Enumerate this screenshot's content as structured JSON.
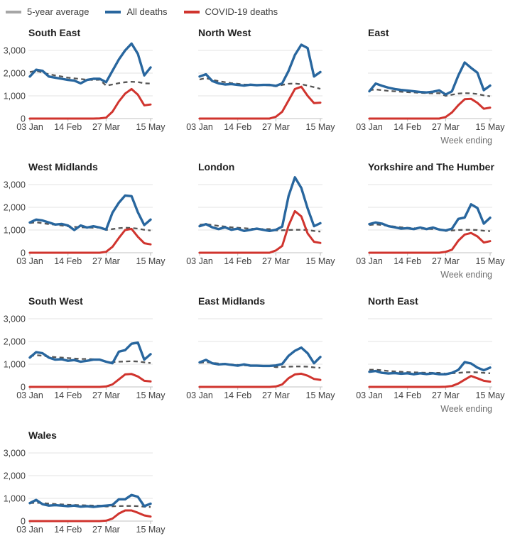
{
  "legend": {
    "items": [
      {
        "label": "5-year average",
        "key": "avg"
      },
      {
        "label": "All deaths",
        "key": "all"
      },
      {
        "label": "COVID-19 deaths",
        "key": "covid"
      }
    ]
  },
  "colors": {
    "legend_swatch": {
      "avg": "#a6a6a6",
      "all": "#28669e",
      "covid": "#d0342e"
    },
    "line": {
      "avg": "#555555",
      "all": "#28669e",
      "covid": "#d0342e"
    },
    "grid": "#e3e3e3",
    "axis": "#c0c0c0",
    "tick": "#bdbdbd"
  },
  "axis": {
    "x_ticks": [
      {
        "label": "03 Jan",
        "index": 0
      },
      {
        "label": "14 Feb",
        "index": 6
      },
      {
        "label": "27 Mar",
        "index": 12
      },
      {
        "label": "15 May",
        "index": 19
      }
    ],
    "y_ticks": [
      {
        "label": "0",
        "value": 0
      },
      {
        "label": "1,000",
        "value": 1000
      },
      {
        "label": "2,000",
        "value": 2000
      },
      {
        "label": "3,000",
        "value": 3000
      }
    ],
    "x_axis_note": "Week ending",
    "n_points": 20,
    "ylim": [
      0,
      3500
    ]
  },
  "chart_data": [
    {
      "type": "line",
      "region": "South East",
      "show_y_axis": true,
      "show_week_ending": false,
      "series": {
        "avg": [
          2050,
          2100,
          2030,
          1950,
          1900,
          1850,
          1800,
          1770,
          1740,
          1710,
          1700,
          1710,
          1450,
          1500,
          1560,
          1600,
          1620,
          1610,
          1550,
          1540
        ],
        "all": [
          1850,
          2150,
          2100,
          1850,
          1800,
          1750,
          1700,
          1670,
          1550,
          1700,
          1750,
          1750,
          1600,
          2100,
          2600,
          3000,
          3300,
          2850,
          1900,
          2250
        ],
        "covid": [
          0,
          0,
          0,
          0,
          0,
          0,
          0,
          0,
          0,
          0,
          0,
          10,
          40,
          300,
          750,
          1100,
          1300,
          1050,
          580,
          620
        ]
      }
    },
    {
      "type": "line",
      "region": "North West",
      "show_y_axis": false,
      "show_week_ending": false,
      "series": {
        "avg": [
          1720,
          1780,
          1700,
          1650,
          1600,
          1560,
          1530,
          1500,
          1490,
          1480,
          1470,
          1460,
          1420,
          1480,
          1530,
          1540,
          1510,
          1450,
          1380,
          1310
        ],
        "all": [
          1850,
          1950,
          1650,
          1550,
          1500,
          1520,
          1480,
          1450,
          1490,
          1470,
          1480,
          1480,
          1440,
          1550,
          2100,
          2800,
          3250,
          3100,
          1850,
          2050
        ],
        "covid": [
          0,
          0,
          0,
          0,
          0,
          0,
          0,
          0,
          0,
          0,
          0,
          0,
          80,
          300,
          800,
          1300,
          1400,
          1000,
          680,
          700
        ]
      }
    },
    {
      "type": "line",
      "region": "East",
      "show_y_axis": false,
      "show_week_ending": true,
      "series": {
        "avg": [
          1250,
          1280,
          1250,
          1220,
          1200,
          1180,
          1160,
          1150,
          1130,
          1120,
          1110,
          1120,
          1000,
          1050,
          1100,
          1120,
          1110,
          1080,
          1020,
          980
        ],
        "all": [
          1200,
          1540,
          1440,
          1360,
          1300,
          1260,
          1230,
          1200,
          1170,
          1150,
          1180,
          1240,
          1060,
          1200,
          1900,
          2470,
          2230,
          2020,
          1250,
          1450
        ],
        "covid": [
          0,
          0,
          0,
          0,
          0,
          0,
          0,
          0,
          0,
          0,
          0,
          0,
          70,
          270,
          590,
          850,
          870,
          690,
          430,
          480
        ]
      }
    },
    {
      "type": "line",
      "region": "West Midlands",
      "show_y_axis": true,
      "show_week_ending": false,
      "series": {
        "avg": [
          1310,
          1340,
          1300,
          1260,
          1230,
          1200,
          1170,
          1140,
          1120,
          1110,
          1100,
          1110,
          1000,
          1040,
          1080,
          1100,
          1090,
          1060,
          1010,
          980
        ],
        "all": [
          1330,
          1460,
          1420,
          1330,
          1240,
          1270,
          1200,
          1000,
          1200,
          1110,
          1165,
          1110,
          1020,
          1760,
          2200,
          2520,
          2490,
          1780,
          1220,
          1460
        ],
        "covid": [
          0,
          0,
          0,
          0,
          0,
          0,
          0,
          0,
          0,
          0,
          0,
          0,
          40,
          260,
          650,
          1000,
          1050,
          700,
          420,
          370
        ]
      }
    },
    {
      "type": "line",
      "region": "London",
      "show_y_axis": false,
      "show_week_ending": false,
      "series": {
        "avg": [
          1230,
          1260,
          1220,
          1180,
          1150,
          1120,
          1100,
          1080,
          1060,
          1050,
          1040,
          1040,
          980,
          990,
          1000,
          1010,
          1010,
          1000,
          960,
          930
        ],
        "all": [
          1170,
          1260,
          1120,
          1040,
          1120,
          1010,
          1060,
          960,
          1010,
          1060,
          1010,
          960,
          1010,
          1150,
          2500,
          3320,
          2850,
          1950,
          1170,
          1300
        ],
        "covid": [
          0,
          0,
          0,
          0,
          0,
          0,
          0,
          0,
          0,
          0,
          0,
          0,
          100,
          300,
          1200,
          1830,
          1600,
          850,
          480,
          430
        ]
      }
    },
    {
      "type": "line",
      "region": "Yorkshire and The Humber",
      "show_y_axis": false,
      "show_week_ending": true,
      "series": {
        "avg": [
          1220,
          1250,
          1220,
          1180,
          1150,
          1120,
          1100,
          1080,
          1060,
          1050,
          1040,
          1040,
          960,
          980,
          1000,
          1010,
          1010,
          1000,
          970,
          950
        ],
        "all": [
          1260,
          1330,
          1280,
          1170,
          1120,
          1060,
          1080,
          1040,
          1110,
          1040,
          1110,
          1020,
          980,
          1060,
          1490,
          1550,
          2130,
          1970,
          1280,
          1540
        ],
        "covid": [
          0,
          0,
          0,
          0,
          0,
          0,
          0,
          0,
          0,
          0,
          0,
          0,
          40,
          130,
          530,
          800,
          870,
          720,
          450,
          510
        ]
      }
    },
    {
      "type": "line",
      "region": "South West",
      "show_y_axis": true,
      "show_week_ending": false,
      "series": {
        "avg": [
          1350,
          1400,
          1370,
          1340,
          1310,
          1290,
          1270,
          1250,
          1230,
          1230,
          1220,
          1210,
          1100,
          1090,
          1110,
          1120,
          1130,
          1120,
          1080,
          1050
        ],
        "all": [
          1290,
          1530,
          1480,
          1290,
          1200,
          1220,
          1150,
          1180,
          1110,
          1150,
          1200,
          1200,
          1110,
          1040,
          1550,
          1620,
          1900,
          1950,
          1200,
          1440
        ],
        "covid": [
          0,
          0,
          0,
          0,
          0,
          0,
          0,
          0,
          0,
          0,
          0,
          0,
          20,
          110,
          330,
          550,
          570,
          460,
          270,
          240
        ]
      }
    },
    {
      "type": "line",
      "region": "East Midlands",
      "show_y_axis": false,
      "show_week_ending": false,
      "series": {
        "avg": [
          1060,
          1090,
          1060,
          1030,
          1010,
          990,
          970,
          950,
          940,
          930,
          925,
          925,
          870,
          880,
          890,
          900,
          900,
          890,
          860,
          840
        ],
        "all": [
          1080,
          1190,
          1040,
          990,
          1010,
          970,
          935,
          990,
          935,
          935,
          925,
          925,
          945,
          1010,
          1370,
          1590,
          1730,
          1480,
          1040,
          1320
        ],
        "covid": [
          0,
          0,
          0,
          0,
          0,
          0,
          0,
          0,
          0,
          0,
          0,
          0,
          20,
          110,
          385,
          550,
          580,
          495,
          350,
          310
        ]
      }
    },
    {
      "type": "line",
      "region": "North East",
      "show_y_axis": false,
      "show_week_ending": true,
      "series": {
        "avg": [
          755,
          760,
          730,
          700,
          680,
          665,
          650,
          640,
          630,
          625,
          620,
          620,
          580,
          600,
          620,
          640,
          650,
          640,
          620,
          600
        ],
        "all": [
          665,
          700,
          620,
          590,
          610,
          580,
          600,
          555,
          600,
          565,
          600,
          555,
          555,
          620,
          750,
          1090,
          1030,
          850,
          730,
          850
        ],
        "covid": [
          0,
          0,
          0,
          0,
          0,
          0,
          0,
          0,
          0,
          0,
          0,
          0,
          10,
          40,
          150,
          320,
          480,
          380,
          270,
          230
        ]
      }
    },
    {
      "type": "line",
      "region": "Wales",
      "show_y_axis": true,
      "show_week_ending": false,
      "series": {
        "avg": [
          790,
          810,
          790,
          770,
          750,
          735,
          720,
          710,
          700,
          690,
          685,
          680,
          640,
          650,
          660,
          665,
          665,
          655,
          635,
          620
        ],
        "all": [
          790,
          930,
          745,
          680,
          700,
          680,
          655,
          680,
          635,
          655,
          625,
          655,
          680,
          710,
          960,
          960,
          1150,
          1070,
          655,
          765
        ],
        "covid": [
          0,
          0,
          0,
          0,
          0,
          0,
          0,
          0,
          0,
          0,
          0,
          0,
          20,
          110,
          330,
          470,
          470,
          370,
          250,
          200
        ]
      }
    }
  ]
}
